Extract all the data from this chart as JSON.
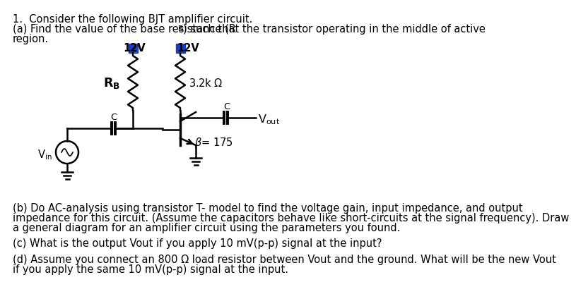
{
  "bg_color": "#ffffff",
  "text_color": "#000000",
  "circuit_color": "#000000",
  "vcc_color": "#1e3eb8",
  "font_size": 10.5,
  "line1": "1.  Consider the following BJT amplifier circuit.",
  "line2a": "(a) Find the value of the base resistance (R",
  "line2b": "B",
  "line2c": ") such that the transistor operating in the middle of active",
  "line3": "region.",
  "part_b1": "(b) Do AC-analysis using transistor T- model to find the voltage gain, input impedance, and output",
  "part_b2": "impedance for this circuit. (Assume the capacitors behave like short-circuits at the signal frequency). Draw",
  "part_b3": "a general diagram for an amplifier circuit using the parameters you found.",
  "part_c": "(c) What is the output Vout if you apply 10 mV(p-p) signal at the input?",
  "part_d1": "(d) Assume you connect an 800 Ω load resistor between Vout and the ground. What will be the new Vout",
  "part_d2": "if you apply the same 10 mV(p-p) signal at the input.",
  "vcc1_label": "12V",
  "vcc2_label": "12V",
  "rb_label": "R_B",
  "rc_label": "3.2kΩ",
  "beta_label": "β= 175",
  "vout_label": "V_out",
  "vin_label": "V_in",
  "cap_label": "C"
}
